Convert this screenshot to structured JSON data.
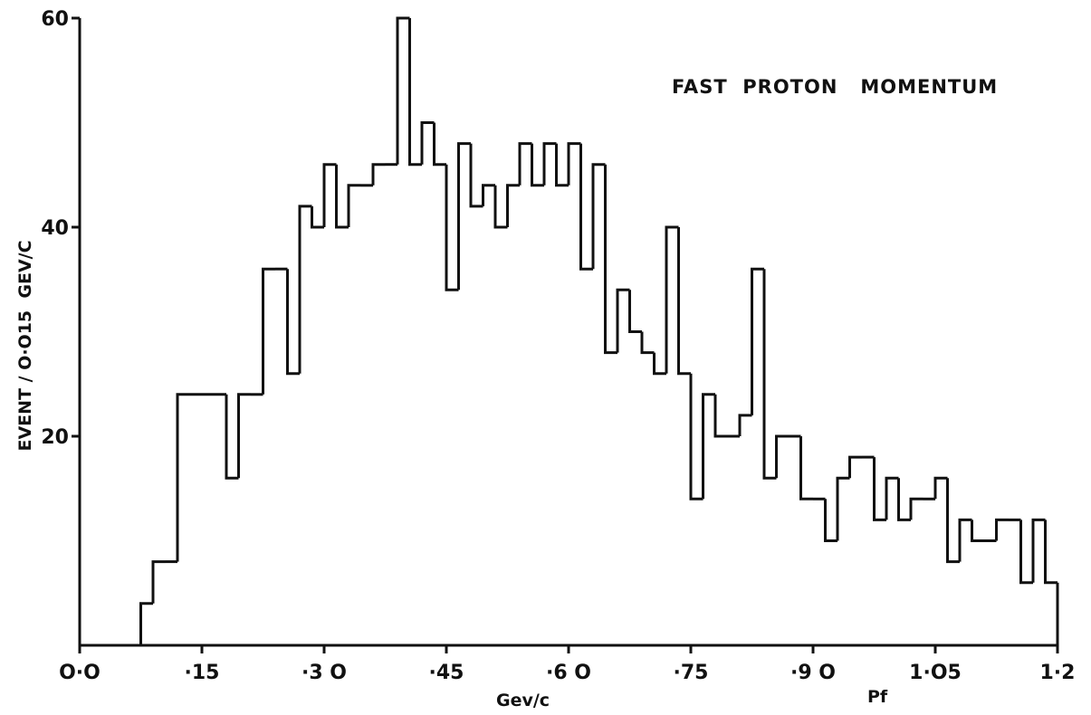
{
  "chart_data": {
    "type": "bar",
    "title": "FAST  PROTON   MOMENTUM",
    "xlabel": "Gev/c",
    "xlabel_right": "Pf",
    "ylabel": "EVENT / O·O15  GEV/C",
    "xlim": [
      0,
      1.2
    ],
    "ylim": [
      0,
      60
    ],
    "bin_width": 0.015,
    "x_tick_values": [
      0,
      0.15,
      0.3,
      0.45,
      0.6,
      0.75,
      0.9,
      1.05,
      1.2
    ],
    "x_tick_labels": [
      "O·O",
      "·15",
      "·3 O",
      "·45",
      "·6 O",
      "·75",
      "·9 O",
      "1·O5",
      "1·2"
    ],
    "y_tick_values": [
      20,
      40,
      60
    ],
    "y_tick_labels": [
      "20",
      "40",
      "60"
    ],
    "bin_edges": [
      0.0,
      0.075,
      0.09,
      0.105,
      0.12,
      0.15,
      0.18,
      0.195,
      0.21,
      0.225,
      0.24,
      0.255,
      0.27,
      0.285,
      0.3,
      0.315,
      0.33,
      0.345,
      0.36,
      0.375,
      0.39,
      0.405,
      0.42,
      0.435,
      0.45,
      0.465,
      0.48,
      0.495,
      0.51,
      0.525,
      0.54,
      0.555,
      0.57,
      0.585,
      0.6,
      0.615,
      0.63,
      0.645,
      0.66,
      0.675,
      0.69,
      0.705,
      0.72,
      0.735,
      0.75,
      0.765,
      0.78,
      0.795,
      0.81,
      0.825,
      0.84,
      0.855,
      0.87,
      0.885,
      0.9,
      0.915,
      0.93,
      0.945,
      0.96,
      0.975,
      0.99,
      1.005,
      1.02,
      1.035,
      1.05,
      1.065,
      1.08,
      1.095,
      1.11,
      1.125,
      1.14,
      1.155,
      1.17,
      1.185,
      1.2
    ],
    "values": [
      0,
      4,
      8,
      8,
      24,
      24,
      16,
      24,
      24,
      36,
      36,
      26,
      42,
      40,
      46,
      40,
      44,
      44,
      46,
      46,
      60,
      46,
      50,
      46,
      34,
      48,
      42,
      44,
      40,
      44,
      48,
      44,
      48,
      44,
      48,
      36,
      46,
      28,
      34,
      30,
      28,
      26,
      40,
      26,
      14,
      24,
      20,
      20,
      22,
      36,
      16,
      20,
      20,
      14,
      14,
      10,
      16,
      18,
      18,
      12,
      16,
      12,
      14,
      14,
      16,
      8,
      12,
      10,
      10,
      12,
      12,
      6,
      12,
      6
    ]
  }
}
